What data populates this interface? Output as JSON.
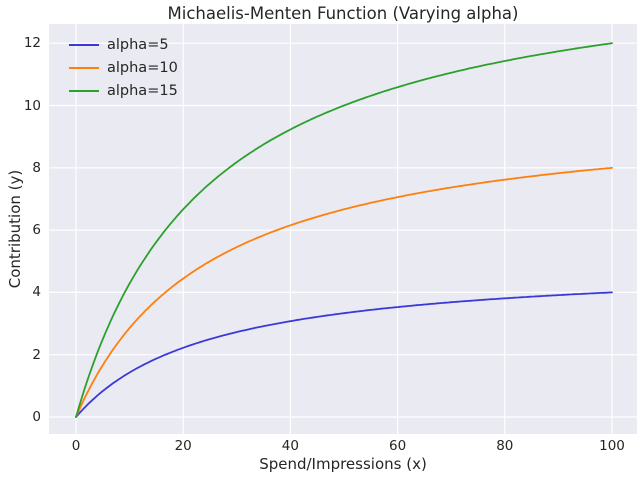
{
  "chart_data": {
    "type": "line",
    "title": "Michaelis-Menten Function (Varying alpha)",
    "xlabel": "Spend/Impressions (x)",
    "ylabel": "Contribution (y)",
    "x_ticks": [
      0,
      20,
      40,
      60,
      80,
      100
    ],
    "y_ticks": [
      0,
      2,
      4,
      6,
      8,
      10,
      12
    ],
    "x_range": [
      0,
      100
    ],
    "xlim": [
      -5,
      105
    ],
    "ylim": [
      -0.6,
      12.6
    ],
    "grid": true,
    "function": "y = alpha * x / (lambda + x)",
    "lambda": 25,
    "series": [
      {
        "name": "alpha=5",
        "alpha": 5,
        "color": "#3a3ad9",
        "x_at_ticks": [
          0,
          20,
          40,
          60,
          80,
          100
        ],
        "values_at_ticks": [
          0,
          2.22,
          3.08,
          3.53,
          3.81,
          4.0
        ]
      },
      {
        "name": "alpha=10",
        "alpha": 10,
        "color": "#ff7f0e",
        "x_at_ticks": [
          0,
          20,
          40,
          60,
          80,
          100
        ],
        "values_at_ticks": [
          0,
          4.44,
          6.15,
          7.06,
          7.62,
          8.0
        ]
      },
      {
        "name": "alpha=15",
        "alpha": 15,
        "color": "#2ca02c",
        "x_at_ticks": [
          0,
          20,
          40,
          60,
          80,
          100
        ],
        "values_at_ticks": [
          0,
          6.67,
          9.23,
          10.59,
          11.43,
          12.0
        ]
      }
    ],
    "legend": {
      "position": "upper left",
      "frame": false,
      "entries": [
        "alpha=5",
        "alpha=10",
        "alpha=15"
      ]
    },
    "colors": {
      "figure_background": "#ffffff",
      "axes_background": "#eaeaf2",
      "grid": "#ffffff",
      "text": "#262626"
    }
  }
}
